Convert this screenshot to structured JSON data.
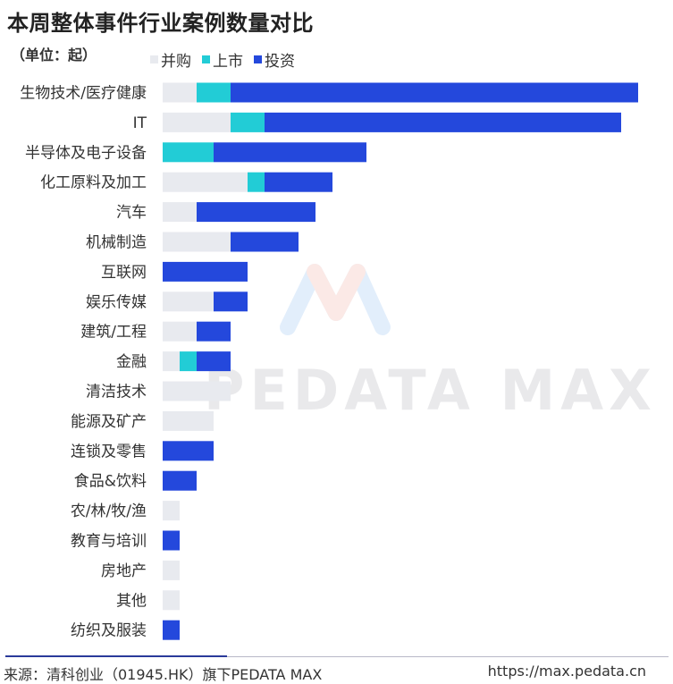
{
  "title": "本周整体事件行业案例数量对比",
  "unit": "（单位：起）",
  "source": "来源：清科创业（01945.HK）旗下PEDATA MAX",
  "url": "https://max.pedata.cn",
  "watermark": "PEDATA MAX",
  "colors": {
    "acquisition": "#e8eaef",
    "ipo": "#22ccd6",
    "investment": "#2448dc"
  },
  "chart_data": {
    "type": "bar",
    "orientation": "horizontal",
    "stacked": true,
    "title": "本周整体事件行业案例数量对比",
    "unit": "（单位：起）",
    "legend_position": "top",
    "categories": [
      "生物技术/医疗健康",
      "IT",
      "半导体及电子设备",
      "化工原料及加工",
      "汽车",
      "机械制造",
      "互联网",
      "娱乐传媒",
      "建筑/工程",
      "金融",
      "清洁技术",
      "能源及矿产",
      "连锁及零售",
      "食品&饮料",
      "农/林/牧/渔",
      "教育与培训",
      "房地产",
      "其他",
      "纺织及服装"
    ],
    "series": [
      {
        "name": "并购",
        "values": [
          2,
          4,
          0,
          5,
          2,
          4,
          0,
          3,
          2,
          1,
          4,
          3,
          0,
          0,
          1,
          0,
          1,
          1,
          0
        ]
      },
      {
        "name": "上市",
        "values": [
          2,
          2,
          3,
          1,
          0,
          0,
          0,
          0,
          0,
          1,
          0,
          0,
          0,
          0,
          0,
          0,
          0,
          0,
          0
        ]
      },
      {
        "name": "投资",
        "values": [
          24,
          21,
          9,
          4,
          7,
          4,
          5,
          2,
          2,
          2,
          0,
          0,
          3,
          2,
          0,
          1,
          0,
          0,
          1
        ]
      }
    ],
    "grid": false
  }
}
